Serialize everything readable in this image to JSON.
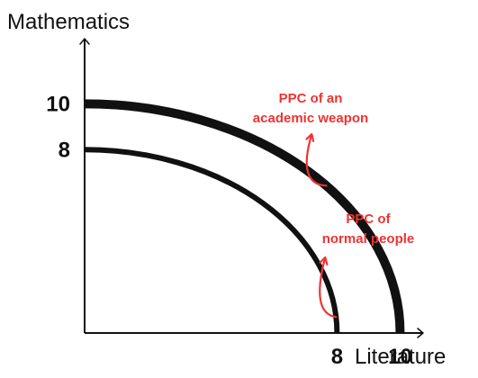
{
  "chart_data": {
    "type": "line",
    "xlabel": "Literature",
    "ylabel": "Mathematics",
    "xlim": [
      0,
      10.7
    ],
    "ylim": [
      0,
      12.8
    ],
    "x_ticks": [
      {
        "value": 8,
        "label": "8"
      },
      {
        "value": 10,
        "label": "10"
      }
    ],
    "y_ticks": [
      {
        "value": 10,
        "label": "10"
      },
      {
        "value": 8,
        "label": "8"
      }
    ],
    "grid": false,
    "legend": "none",
    "series": [
      {
        "intercept": 10,
        "shape": "quarter-circle",
        "color": "#111111",
        "weight": "thick"
      },
      {
        "intercept": 8,
        "shape": "quarter-circle",
        "color": "#111111",
        "weight": "medium"
      }
    ],
    "annotations": [
      {
        "lines": [
          "PPC of an",
          "academic weapon"
        ],
        "color": "#ee3333",
        "points_to": {
          "series_index": 0,
          "angle_deg": 40
        }
      },
      {
        "lines": [
          "PPC of",
          "normal people"
        ],
        "color": "#ee3333",
        "points_to": {
          "series_index": 1,
          "angle_deg": 5
        }
      }
    ]
  }
}
